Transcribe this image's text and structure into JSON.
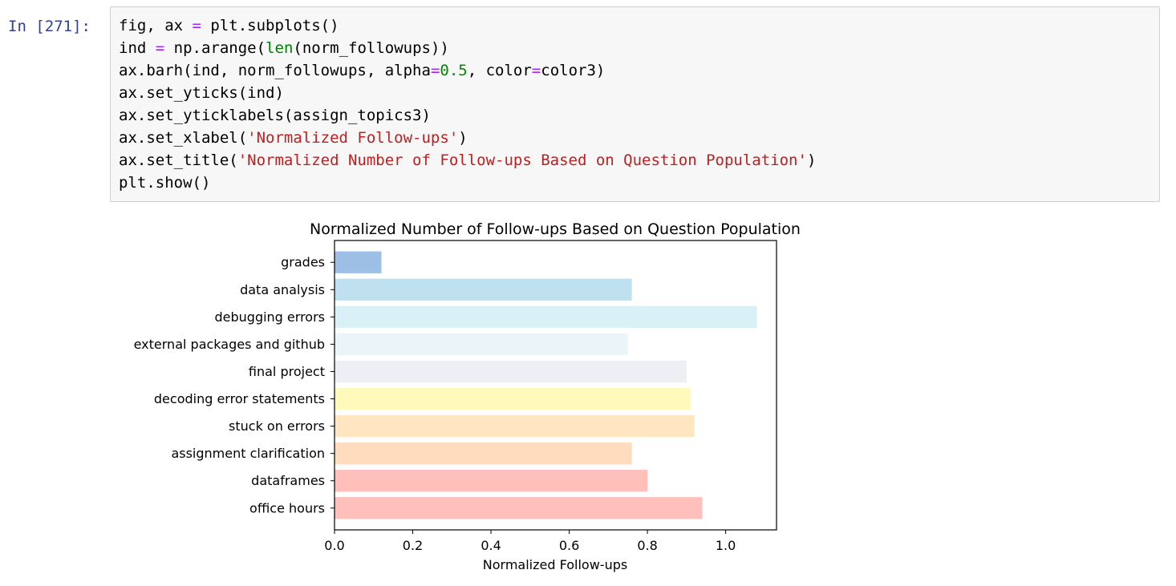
{
  "cell": {
    "prompt": "In [271]:",
    "lines": [
      [
        {
          "t": "fig, ax "
        },
        {
          "t": "=",
          "c": "k"
        },
        {
          "t": " plt.subplots()"
        }
      ],
      [
        {
          "t": "ind "
        },
        {
          "t": "=",
          "c": "k"
        },
        {
          "t": " np.arange("
        },
        {
          "t": "len",
          "c": "b"
        },
        {
          "t": "(norm_followups))"
        }
      ],
      [
        {
          "t": "ax.barh(ind, norm_followups, alpha"
        },
        {
          "t": "=",
          "c": "k"
        },
        {
          "t": "0.5",
          "c": "n"
        },
        {
          "t": ", color"
        },
        {
          "t": "=",
          "c": "k"
        },
        {
          "t": "color3)"
        }
      ],
      [
        {
          "t": "ax.set_yticks(ind)"
        }
      ],
      [
        {
          "t": "ax.set_yticklabels(assign_topics3)"
        }
      ],
      [
        {
          "t": "ax.set_xlabel("
        },
        {
          "t": "'Normalized Follow-ups'",
          "c": "s"
        },
        {
          "t": ")"
        }
      ],
      [
        {
          "t": "ax.set_title("
        },
        {
          "t": "'Normalized Number of Follow-ups Based on Question Population'",
          "c": "s"
        },
        {
          "t": ")"
        }
      ],
      [
        {
          "t": "plt.show()"
        }
      ]
    ]
  },
  "chart_data": {
    "type": "bar",
    "orientation": "horizontal",
    "title": "Normalized Number of Follow-ups Based on Question Population",
    "xlabel": "Normalized Follow-ups",
    "ylabel": "",
    "xlim": [
      0,
      1.13
    ],
    "xticks": [
      0.0,
      0.2,
      0.4,
      0.6,
      0.8,
      1.0
    ],
    "xtick_labels": [
      "0.0",
      "0.2",
      "0.4",
      "0.6",
      "0.8",
      "1.0"
    ],
    "grid": false,
    "categories": [
      "office hours",
      "dataframes",
      "assignment clarification",
      "stuck on errors",
      "decoding error statements",
      "final project",
      "external packages and github",
      "debugging errors",
      "data analysis",
      "grades"
    ],
    "values": [
      0.94,
      0.8,
      0.76,
      0.92,
      0.91,
      0.9,
      0.75,
      1.08,
      0.76,
      0.12
    ],
    "colors": [
      "#ff8075",
      "#ff8075",
      "#ffb97d",
      "#ffcd84",
      "#fff57a",
      "#dde0ea",
      "#d8e9f3",
      "#b4e3ee",
      "#7fc2dd",
      "#3b7fcb"
    ]
  }
}
